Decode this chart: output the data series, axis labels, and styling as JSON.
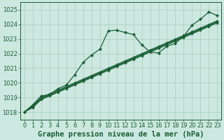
{
  "title": "Graphe pression niveau de la mer (hPa)",
  "background_color": "#cce8e0",
  "grid_color": "#aaccbb",
  "line_color": "#1a5e35",
  "ylim": [
    1017.5,
    1025.5
  ],
  "xlim": [
    -0.5,
    23.5
  ],
  "yticks": [
    1018,
    1019,
    1020,
    1021,
    1022,
    1023,
    1024,
    1025
  ],
  "xticks": [
    0,
    1,
    2,
    3,
    4,
    5,
    6,
    7,
    8,
    9,
    10,
    11,
    12,
    13,
    14,
    15,
    16,
    17,
    18,
    19,
    20,
    21,
    22,
    23
  ],
  "wavy_line": [
    1018.0,
    1018.5,
    1019.1,
    1019.2,
    1019.6,
    1019.85,
    1020.55,
    1021.4,
    1021.9,
    1022.3,
    1023.55,
    1023.6,
    1023.45,
    1023.3,
    1022.6,
    1022.1,
    1022.05,
    1022.5,
    1022.7,
    1023.2,
    1023.95,
    1024.35,
    1024.85,
    1024.6
  ],
  "linear_lines": [
    [
      1018.0,
      1018.3,
      1018.85,
      1019.1,
      1019.35,
      1019.6,
      1019.85,
      1020.1,
      1020.35,
      1020.6,
      1020.85,
      1021.1,
      1021.35,
      1021.6,
      1021.85,
      1022.1,
      1022.35,
      1022.6,
      1022.85,
      1023.1,
      1023.35,
      1023.6,
      1023.85,
      1024.1
    ],
    [
      1018.0,
      1018.35,
      1018.9,
      1019.15,
      1019.4,
      1019.65,
      1019.9,
      1020.15,
      1020.4,
      1020.65,
      1020.9,
      1021.15,
      1021.4,
      1021.65,
      1021.9,
      1022.15,
      1022.4,
      1022.65,
      1022.9,
      1023.15,
      1023.4,
      1023.65,
      1023.9,
      1024.15
    ],
    [
      1018.0,
      1018.4,
      1018.95,
      1019.2,
      1019.45,
      1019.7,
      1019.95,
      1020.2,
      1020.45,
      1020.7,
      1020.95,
      1021.2,
      1021.45,
      1021.7,
      1021.95,
      1022.2,
      1022.45,
      1022.7,
      1022.95,
      1023.2,
      1023.45,
      1023.7,
      1023.95,
      1024.2
    ],
    [
      1018.0,
      1018.45,
      1019.0,
      1019.25,
      1019.5,
      1019.75,
      1020.0,
      1020.25,
      1020.5,
      1020.75,
      1021.0,
      1021.25,
      1021.5,
      1021.75,
      1022.0,
      1022.25,
      1022.5,
      1022.75,
      1023.0,
      1023.25,
      1023.5,
      1023.75,
      1024.0,
      1024.25
    ]
  ],
  "title_fontsize": 7.5,
  "tick_fontsize": 6
}
